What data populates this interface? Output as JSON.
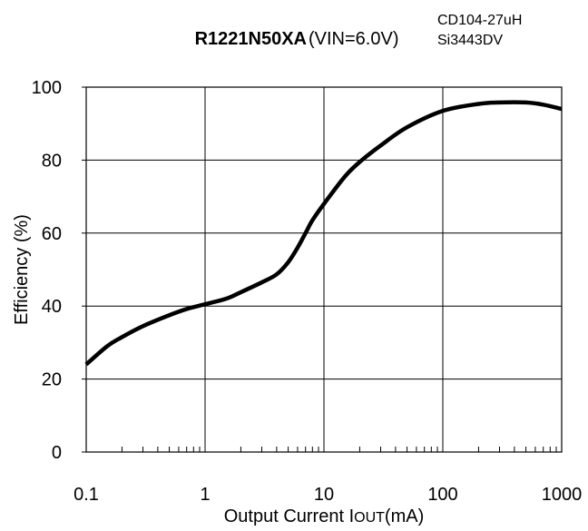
{
  "chart_data": {
    "type": "line",
    "title_part": "R1221N50XA",
    "title_condition": "(VIN=6.0V)",
    "annotation_lines": [
      "CD104-27uH",
      "Si3443DV"
    ],
    "ylabel": "Efficiency (%)",
    "xlabel_prefix": "Output Current I",
    "xlabel_sub": "OUT",
    "xlabel_suffix": "(mA)",
    "x_scale": "log",
    "xlim": [
      0.1,
      1000
    ],
    "ylim": [
      0,
      100
    ],
    "grid": true,
    "x_ticks": [
      0.1,
      1,
      10,
      100,
      1000
    ],
    "x_tick_labels": [
      "0.1",
      "1",
      "10",
      "100",
      "1000"
    ],
    "y_ticks": [
      0,
      20,
      40,
      60,
      80,
      100
    ],
    "y_tick_labels": [
      "0",
      "20",
      "40",
      "60",
      "80",
      "100"
    ],
    "series": [
      {
        "color": "#000000",
        "x": [
          0.1,
          0.15,
          0.2,
          0.3,
          0.5,
          0.7,
          1,
          1.5,
          2,
          3,
          4,
          5,
          6,
          7,
          8,
          10,
          15,
          20,
          30,
          50,
          100,
          200,
          300,
          500,
          700,
          1000
        ],
        "y": [
          24,
          29,
          31.5,
          34.5,
          37.5,
          39.2,
          40.5,
          42,
          43.8,
          46.5,
          48.7,
          52,
          56,
          60,
          63.5,
          68,
          75.5,
          79.5,
          84,
          89,
          93.5,
          95.4,
          95.8,
          95.8,
          95.2,
          94
        ]
      }
    ]
  }
}
